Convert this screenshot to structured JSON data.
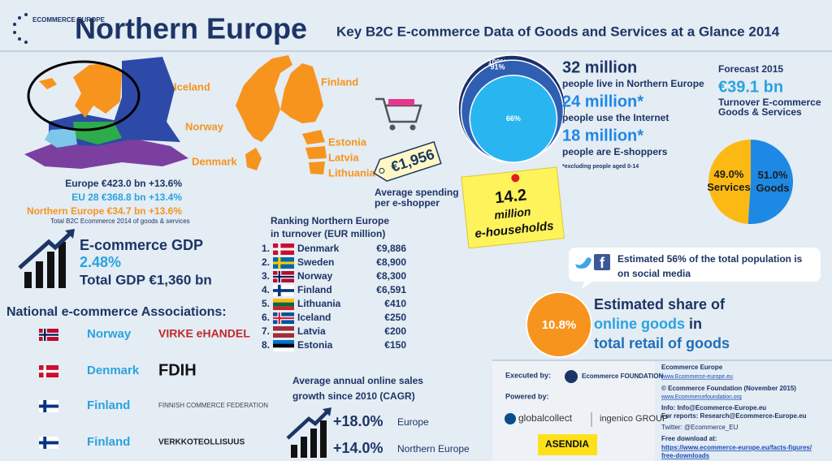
{
  "header": {
    "logo": "ECOMMERCE EUROPE",
    "title": "Northern Europe",
    "subtitle": "Key B2C E-commerce Data of Goods and Services at a Glance 2014"
  },
  "map": {
    "labels": [
      "Iceland",
      "Norway",
      "Denmark",
      "Finland",
      "Estonia",
      "Latvia",
      "Lithuania"
    ]
  },
  "turnover": {
    "europe": "Europe €423.0 bn +13.6%",
    "eu28": "EU 28 €368.8 bn +13.4%",
    "northern": "Northern Europe €34.7 bn +13.6%",
    "note": "Total B2C Ecommerce 2014 of goods & services"
  },
  "spending": {
    "value": "€1,956",
    "label": [
      "Average spending",
      "per e-shopper"
    ]
  },
  "households": [
    "14.2",
    "million",
    "e-households"
  ],
  "population": {
    "circles": [
      {
        "value": 100,
        "label": "100%"
      },
      {
        "value": 91,
        "label": "91%"
      },
      {
        "value": 66,
        "label": "66%"
      }
    ],
    "stats": [
      {
        "number": "32 million",
        "text": "people live in Northern Europe"
      },
      {
        "number": "24 million*",
        "text": "people use the Internet"
      },
      {
        "number": "18 million*",
        "text": "people are E-shoppers"
      }
    ],
    "note": "*excluding people aged 0-14"
  },
  "forecast": {
    "title": "Forecast 2015",
    "value": "€39.1 bn",
    "label": [
      "Turnover E-commerce",
      "Goods & Services"
    ]
  },
  "split": {
    "type": "pie",
    "slices": [
      {
        "name": "Services",
        "value": 49.0,
        "label": "49.0%",
        "color": "#fdb913"
      },
      {
        "name": "Goods",
        "value": 51.0,
        "label": "51.0%",
        "color": "#1e88e5"
      }
    ]
  },
  "gdp": {
    "title": "E-commerce GDP",
    "value": "2.48%",
    "total": "Total GDP €1,360 bn"
  },
  "ranking": {
    "title": [
      "Ranking Northern Europe",
      "in turnover (EUR million)"
    ],
    "rows": [
      {
        "rank": "1.",
        "country": "Denmark",
        "value": "€9,886"
      },
      {
        "rank": "2.",
        "country": "Sweden",
        "value": "€8,900"
      },
      {
        "rank": "3.",
        "country": "Norway",
        "value": "€8,300"
      },
      {
        "rank": "4.",
        "country": "Finland",
        "value": "€6,591"
      },
      {
        "rank": "5.",
        "country": "Lithuania",
        "value": "€410"
      },
      {
        "rank": "6.",
        "country": "Iceland",
        "value": "€250"
      },
      {
        "rank": "7.",
        "country": "Latvia",
        "value": "€200"
      },
      {
        "rank": "8.",
        "country": "Estonia",
        "value": "€150"
      }
    ]
  },
  "associations": {
    "title": "National e-commerce Associations:",
    "rows": [
      {
        "country": "Norway",
        "org": "VIRKE eHANDEL"
      },
      {
        "country": "Denmark",
        "org": "FDIH"
      },
      {
        "country": "Finland",
        "org": "FINNISH COMMERCE FEDERATION"
      },
      {
        "country": "Finland",
        "org": "VERKKOTEOLLISUUS"
      }
    ]
  },
  "growth": {
    "title": [
      "Average annual online sales",
      "growth since 2010 (CAGR)"
    ],
    "rows": [
      {
        "value": "+18.0%",
        "region": "Europe"
      },
      {
        "value": "+14.0%",
        "region": "Northern Europe"
      }
    ]
  },
  "social": [
    "Estimated 56% of the total population is",
    "on social media"
  ],
  "share": {
    "value": "10.8%",
    "line1": "Estimated share of",
    "line2a": "online goods",
    "line2b": "in",
    "line3": "total retail of goods"
  },
  "credits": {
    "executed_by": "Executed by:",
    "executor": "Ecommerce FOUNDATION",
    "powered_by": "Powered by:",
    "sponsors": [
      "globalcollect",
      "ingenico GROUP",
      "ASENDIA"
    ]
  },
  "contact": [
    "Ecommerce Europe",
    "www.Ecommerce-europe.eu",
    "© Ecommerce Foundation (November 2015)",
    "www.Ecommercefoundation.org",
    "Info: Info@Ecommerce-Europe.eu",
    "For reports: Research@Ecommerce-Europe.eu",
    "Twitter: @Ecommerce_EU",
    "Free download at:",
    "https://www.ecommerce-europe.eu/facts-figures/",
    "free-downloads"
  ]
}
